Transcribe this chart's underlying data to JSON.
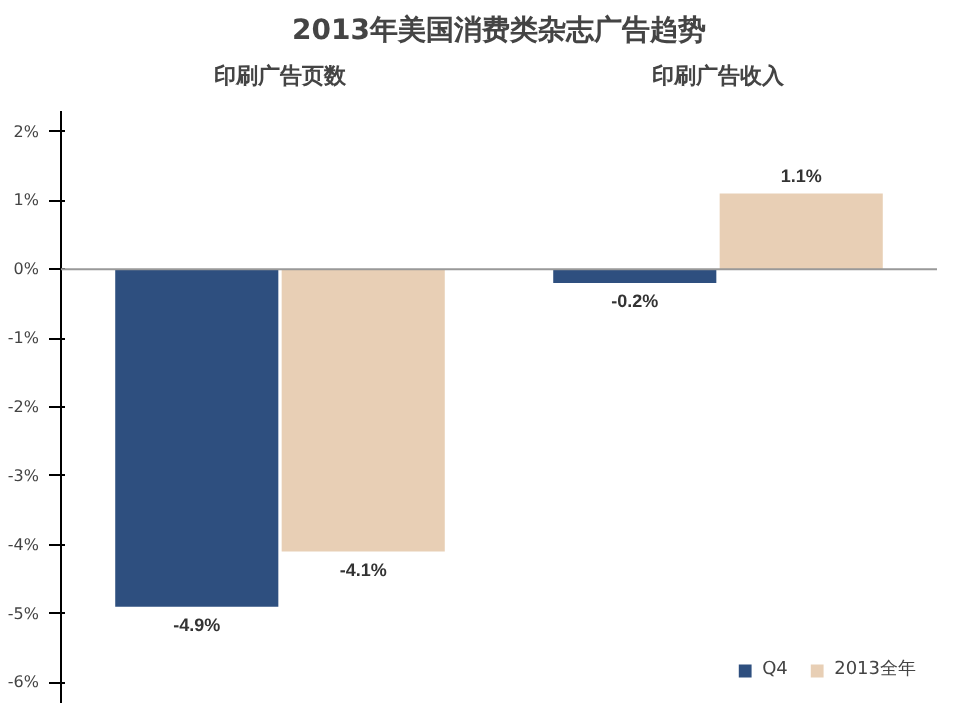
{
  "chart_data": {
    "type": "bar",
    "title": "2013年美国消费类杂志广告趋势",
    "categories": [
      "印刷广告页数",
      "印刷广告收入"
    ],
    "series": [
      {
        "name": "Q4",
        "color": "#2e4f7f",
        "values": [
          -4.9,
          -0.2
        ],
        "value_labels": [
          "-4.9%",
          "-0.2%"
        ]
      },
      {
        "name": "2013全年",
        "color": "#e8cfb5",
        "values": [
          -4.1,
          1.1
        ],
        "value_labels": [
          "-4.1%",
          "1.1%"
        ]
      }
    ],
    "ylim": [
      -6.3,
      2.3
    ],
    "yticks": [
      {
        "value": 2,
        "label": "2%"
      },
      {
        "value": 1,
        "label": "1%"
      },
      {
        "value": 0,
        "label": "0%"
      },
      {
        "value": -1,
        "label": "-1%"
      },
      {
        "value": -2,
        "label": "-2%"
      },
      {
        "value": -3,
        "label": "-3%"
      },
      {
        "value": -4,
        "label": "-4%"
      },
      {
        "value": -5,
        "label": "-5%"
      },
      {
        "value": -6,
        "label": "-6%"
      }
    ],
    "ref_lines": [
      {
        "axis": "y",
        "value": 0,
        "color": "#999999"
      }
    ],
    "legend": "bottom right"
  }
}
